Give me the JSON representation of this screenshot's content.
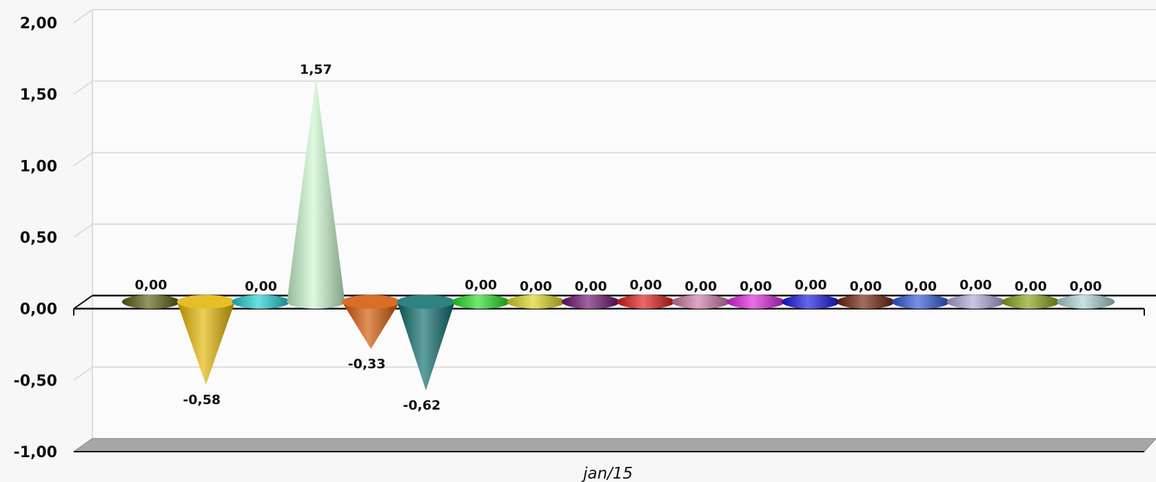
{
  "chart_data": {
    "type": "bar",
    "shape": "cone",
    "style": "3d",
    "categories": [
      "jan/15"
    ],
    "ylim": [
      -1.0,
      2.0
    ],
    "yticks": [
      2.0,
      1.5,
      1.0,
      0.5,
      0.0,
      -0.5,
      -1.0
    ],
    "ytick_labels": [
      "2,00",
      "1,50",
      "1,00",
      "0,50",
      "0,00",
      "-0,50",
      "-1,00"
    ],
    "grid": true,
    "legend": "none",
    "series": [
      {
        "value": 0.0,
        "label": "0,00",
        "color": "#5c5a0f"
      },
      {
        "value": -0.58,
        "label": "-0,58",
        "color": "#e2b400"
      },
      {
        "value": 0.0,
        "label": "0,00",
        "color": "#1ccdd1"
      },
      {
        "value": 1.57,
        "label": "1,57",
        "color": "#c9f7cd"
      },
      {
        "value": -0.33,
        "label": "-0,33",
        "color": "#d35400"
      },
      {
        "value": -0.62,
        "label": "-0,62",
        "color": "#0b6b6b"
      },
      {
        "value": 0.0,
        "label": "0,00",
        "color": "#22dd22"
      },
      {
        "value": 0.0,
        "label": "0,00",
        "color": "#d8d41a"
      },
      {
        "value": 0.0,
        "label": "0,00",
        "color": "#6b0f6e"
      },
      {
        "value": 0.0,
        "label": "0,00",
        "color": "#dd1717"
      },
      {
        "value": 0.0,
        "label": "0,00",
        "color": "#cc78a6"
      },
      {
        "value": 0.0,
        "label": "0,00",
        "color": "#dc22dc"
      },
      {
        "value": 0.0,
        "label": "0,00",
        "color": "#1414e0"
      },
      {
        "value": 0.0,
        "label": "0,00",
        "color": "#6f1f07"
      },
      {
        "value": 0.0,
        "label": "0,00",
        "color": "#2e55d6"
      },
      {
        "value": 0.0,
        "label": "0,00",
        "color": "#aaa6d8"
      },
      {
        "value": 0.0,
        "label": "0,00",
        "color": "#84a313"
      },
      {
        "value": 0.0,
        "label": "0,00",
        "color": "#a9d2d4"
      }
    ]
  }
}
